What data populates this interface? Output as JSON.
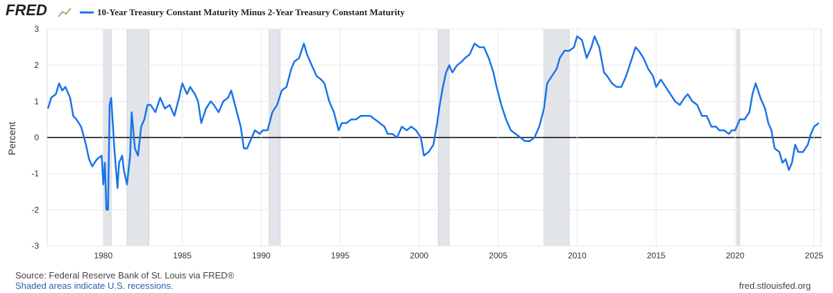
{
  "logo": "FRED",
  "chart_data": {
    "type": "line",
    "series": [
      {
        "name": "10-Year Treasury Constant Maturity Minus 2-Year Treasury Constant Maturity",
        "color": "#1a73e8",
        "x": [
          1976.5,
          1976.7,
          1977.0,
          1977.2,
          1977.4,
          1977.6,
          1977.9,
          1978.1,
          1978.3,
          1978.6,
          1978.9,
          1979.1,
          1979.3,
          1979.6,
          1979.9,
          1980.0,
          1980.1,
          1980.2,
          1980.3,
          1980.4,
          1980.5,
          1980.7,
          1980.9,
          1981.0,
          1981.2,
          1981.3,
          1981.5,
          1981.7,
          1981.8,
          1982.0,
          1982.2,
          1982.4,
          1982.6,
          1982.8,
          1983.0,
          1983.3,
          1983.6,
          1983.9,
          1984.2,
          1984.5,
          1984.8,
          1985.0,
          1985.3,
          1985.5,
          1985.8,
          1986.0,
          1986.2,
          1986.5,
          1986.8,
          1987.0,
          1987.3,
          1987.6,
          1987.9,
          1988.1,
          1988.4,
          1988.7,
          1988.9,
          1989.1,
          1989.3,
          1989.6,
          1989.9,
          1990.1,
          1990.4,
          1990.7,
          1991.0,
          1991.3,
          1991.6,
          1991.9,
          1992.1,
          1992.4,
          1992.7,
          1992.9,
          1993.2,
          1993.5,
          1993.8,
          1994.0,
          1994.3,
          1994.6,
          1994.9,
          1995.1,
          1995.4,
          1995.7,
          1996.0,
          1996.3,
          1996.6,
          1996.9,
          1997.2,
          1997.5,
          1997.8,
          1998.0,
          1998.3,
          1998.6,
          1998.9,
          1999.2,
          1999.5,
          1999.8,
          2000.1,
          2000.3,
          2000.6,
          2000.9,
          2001.1,
          2001.3,
          2001.5,
          2001.7,
          2001.9,
          2002.1,
          2002.4,
          2002.7,
          2002.9,
          2003.2,
          2003.5,
          2003.8,
          2004.1,
          2004.4,
          2004.7,
          2004.9,
          2005.2,
          2005.5,
          2005.8,
          2006.1,
          2006.4,
          2006.7,
          2007.0,
          2007.3,
          2007.6,
          2007.9,
          2008.1,
          2008.4,
          2008.7,
          2008.9,
          2009.2,
          2009.5,
          2009.8,
          2010.0,
          2010.3,
          2010.6,
          2010.9,
          2011.1,
          2011.4,
          2011.7,
          2011.9,
          2012.2,
          2012.5,
          2012.8,
          2013.1,
          2013.4,
          2013.7,
          2013.9,
          2014.2,
          2014.5,
          2014.8,
          2015.0,
          2015.3,
          2015.6,
          2015.9,
          2016.2,
          2016.5,
          2016.8,
          2017.0,
          2017.3,
          2017.6,
          2017.9,
          2018.2,
          2018.5,
          2018.8,
          2019.0,
          2019.3,
          2019.6,
          2019.8,
          2020.0,
          2020.3,
          2020.6,
          2020.9,
          2021.1,
          2021.3,
          2021.6,
          2021.9,
          2022.1,
          2022.3,
          2022.5,
          2022.8,
          2023.0,
          2023.2,
          2023.4,
          2023.6,
          2023.8,
          2024.0,
          2024.3,
          2024.6,
          2024.8,
          2025.0,
          2025.3
        ],
        "values": [
          0.8,
          1.1,
          1.2,
          1.5,
          1.3,
          1.4,
          1.1,
          0.6,
          0.5,
          0.3,
          -0.2,
          -0.6,
          -0.8,
          -0.6,
          -0.5,
          -1.3,
          -0.7,
          -2.0,
          -2.0,
          0.9,
          1.1,
          -0.3,
          -1.4,
          -0.7,
          -0.5,
          -0.9,
          -1.3,
          -0.5,
          0.7,
          -0.3,
          -0.5,
          0.3,
          0.5,
          0.9,
          0.9,
          0.7,
          1.1,
          0.8,
          0.9,
          0.6,
          1.1,
          1.5,
          1.2,
          1.4,
          1.2,
          1.0,
          0.4,
          0.8,
          1.0,
          0.9,
          0.7,
          1.0,
          1.1,
          1.3,
          0.8,
          0.3,
          -0.3,
          -0.3,
          -0.1,
          0.2,
          0.1,
          0.2,
          0.2,
          0.7,
          0.9,
          1.3,
          1.4,
          1.9,
          2.1,
          2.2,
          2.6,
          2.3,
          2.0,
          1.7,
          1.6,
          1.5,
          1.0,
          0.7,
          0.2,
          0.4,
          0.4,
          0.5,
          0.5,
          0.6,
          0.6,
          0.6,
          0.5,
          0.4,
          0.3,
          0.1,
          0.1,
          0.0,
          0.3,
          0.2,
          0.3,
          0.2,
          0.0,
          -0.5,
          -0.4,
          -0.2,
          0.3,
          0.9,
          1.4,
          1.8,
          2.0,
          1.8,
          2.0,
          2.1,
          2.2,
          2.3,
          2.6,
          2.5,
          2.5,
          2.2,
          1.8,
          1.4,
          0.9,
          0.5,
          0.2,
          0.1,
          0.0,
          -0.1,
          -0.1,
          0.0,
          0.3,
          0.8,
          1.5,
          1.7,
          1.9,
          2.2,
          2.4,
          2.4,
          2.5,
          2.8,
          2.7,
          2.2,
          2.5,
          2.8,
          2.5,
          1.8,
          1.7,
          1.5,
          1.4,
          1.4,
          1.7,
          2.1,
          2.5,
          2.4,
          2.2,
          1.9,
          1.7,
          1.4,
          1.6,
          1.4,
          1.2,
          1.0,
          0.9,
          1.1,
          1.2,
          1.0,
          0.9,
          0.6,
          0.6,
          0.3,
          0.3,
          0.2,
          0.2,
          0.1,
          0.2,
          0.2,
          0.5,
          0.5,
          0.7,
          1.2,
          1.5,
          1.1,
          0.8,
          0.4,
          0.2,
          -0.3,
          -0.4,
          -0.7,
          -0.6,
          -0.9,
          -0.7,
          -0.2,
          -0.4,
          -0.4,
          -0.2,
          0.1,
          0.3,
          0.4
        ]
      }
    ],
    "recessions": [
      {
        "start": 1980.0,
        "end": 1980.5
      },
      {
        "start": 1981.5,
        "end": 1982.9
      },
      {
        "start": 1990.5,
        "end": 1991.2
      },
      {
        "start": 2001.2,
        "end": 2001.9
      },
      {
        "start": 2007.9,
        "end": 2009.5
      },
      {
        "start": 2020.1,
        "end": 2020.3
      }
    ],
    "ylabel": "Percent",
    "xlim": [
      1976.45,
      2025.45
    ],
    "xticks": [
      1980,
      1985,
      1990,
      1995,
      2000,
      2005,
      2010,
      2015,
      2020,
      2025
    ],
    "ylim": [
      -3,
      3
    ],
    "yticks": [
      -3,
      -2,
      -1,
      0,
      1,
      2,
      3
    ],
    "grid": true,
    "source": "Source: Federal Reserve Bank of St. Louis via FRED®",
    "note": "Shaded areas indicate U.S. recessions.",
    "site": "fred.stlouisfed.org"
  }
}
